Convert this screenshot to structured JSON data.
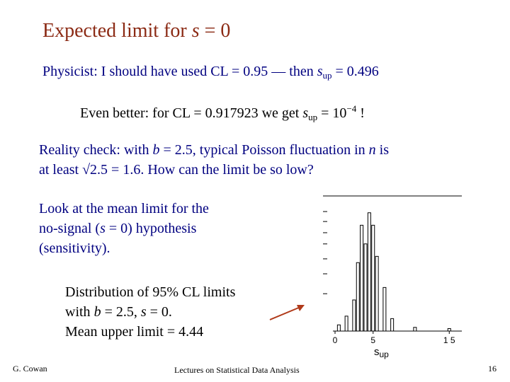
{
  "slide": {
    "title_prefix": "Expected limit for ",
    "title_var": "s",
    "title_suffix": " = 0",
    "physicist": {
      "prefix": "Physicist:  I should have used CL = 0.95 — then ",
      "var": "s",
      "sub": "up",
      "suffix": " = 0.496"
    },
    "better": {
      "prefix": "Even better:  for CL = 0.917923 we get ",
      "var": "s",
      "sub": "up",
      "mid": " = 10",
      "exp": "−4",
      "suffix": " !"
    },
    "reality": {
      "line1_a": "Reality check:  with ",
      "line1_b": "b",
      "line1_c": " = 2.5, typical Poisson fluctuation in ",
      "line1_d": "n",
      "line1_e": " is",
      "line2": "at least √2.5 = 1.6.  How can the limit be so low?"
    },
    "look": {
      "line1": "Look at the mean limit for the",
      "line2_a": "no-signal (",
      "line2_b": "s",
      "line2_c": " = 0) hypothesis",
      "line3": "(sensitivity)."
    },
    "dist": {
      "line1": "Distribution of 95% CL limits",
      "line2_a": "with ",
      "line2_b": "b",
      "line2_c": " = 2.5, ",
      "line2_d": "s",
      "line2_e": " = 0.",
      "line3": "Mean upper limit = 4.44"
    },
    "footer": {
      "author": "G. Cowan",
      "lecture": "Lectures on Statistical Data Analysis",
      "page": "16"
    }
  },
  "plot": {
    "x_ticks": [
      "0",
      "5",
      "1 5"
    ],
    "x_label": "s",
    "x_label_sub": "up"
  },
  "chart_data": {
    "type": "bar",
    "x": [
      0.5,
      1.5,
      2.5,
      3.0,
      3.5,
      4.0,
      4.5,
      5.0,
      5.5,
      6.5,
      7.5,
      10.5,
      15.0
    ],
    "values": [
      0.05,
      0.12,
      0.25,
      0.55,
      0.85,
      0.7,
      0.95,
      0.85,
      0.6,
      0.35,
      0.1,
      0.03,
      0.02
    ],
    "xlim": [
      0,
      16
    ],
    "ylim": [
      0,
      1
    ]
  },
  "colors": {
    "title": "#8b2a14",
    "text_blue": "#000080",
    "arrow": "#b03a1a"
  }
}
